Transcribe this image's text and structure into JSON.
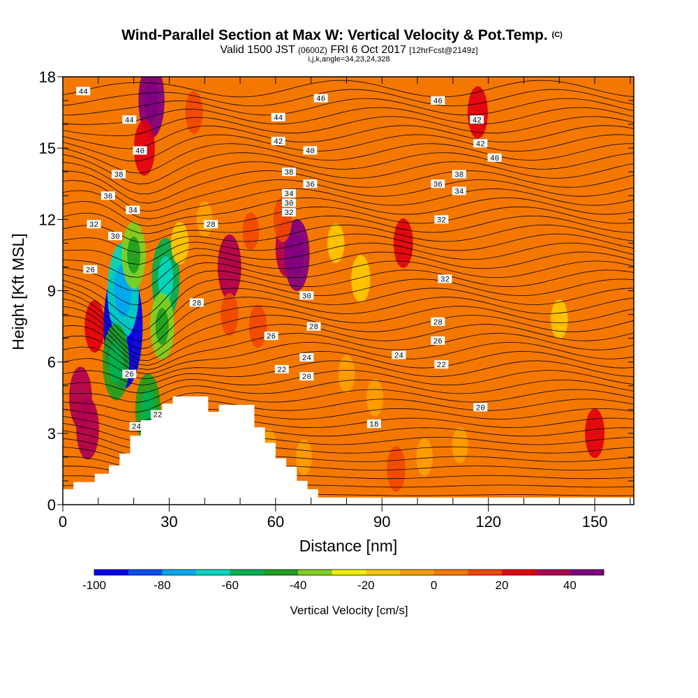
{
  "chart_data": {
    "type": "heatmap",
    "title": "Wind-Parallel Section at Max W: Vertical Velocity & Pot.Temp.",
    "title_mark": "(C)",
    "subtitle_main": "Valid 1500 JST",
    "subtitle_z": "(0600Z)",
    "subtitle_date": "FRI 6 Oct 2017",
    "subtitle_fcst": "[12hrFcst@2149z]",
    "subtitle_indices": "i,j,k,angle=34,23,24,328",
    "xlabel": "Distance [nm]",
    "ylabel": "Height [Kft MSL]",
    "xlim": [
      0,
      161
    ],
    "ylim": [
      0,
      18
    ],
    "xticks": [
      "0",
      "30",
      "60",
      "90",
      "120",
      "150"
    ],
    "yticks": [
      "0",
      "3",
      "6",
      "9",
      "12",
      "15",
      "18"
    ],
    "colorbar": {
      "label": "Vertical Velocity [cm/s]",
      "ticks": [
        "-100",
        "-80",
        "-60",
        "-40",
        "-20",
        "0",
        "20",
        "40"
      ],
      "colors": [
        "#0000f0",
        "#0050f0",
        "#00a8f0",
        "#00d8c0",
        "#00b050",
        "#20a020",
        "#80d020",
        "#f0f000",
        "#ffc800",
        "#ffa000",
        "#f47800",
        "#f04800",
        "#e00010",
        "#b00050",
        "#800080"
      ]
    },
    "theta_contour_labels": [
      "44",
      "46",
      "46",
      "42",
      "44",
      "44",
      "42",
      "42",
      "40",
      "40",
      "40",
      "38",
      "38",
      "38",
      "36",
      "36",
      "36",
      "34",
      "34",
      "34",
      "32",
      "32",
      "32",
      "32",
      "30",
      "30",
      "30",
      "28",
      "28",
      "28",
      "28",
      "26",
      "26",
      "26",
      "26",
      "24",
      "24",
      "24",
      "22",
      "22",
      "22",
      "20",
      "20",
      "18"
    ],
    "vv_cells": [
      {
        "x": 5,
        "y": 4.5,
        "w": 35
      },
      {
        "x": 7,
        "y": 3.2,
        "w": 35
      },
      {
        "x": 9,
        "y": 7.5,
        "w": 25
      },
      {
        "x": 17,
        "y": 7.5,
        "w": -100
      },
      {
        "x": 17,
        "y": 9,
        "w": -70
      },
      {
        "x": 15,
        "y": 6,
        "w": -50
      },
      {
        "x": 20,
        "y": 10.5,
        "w": -40
      },
      {
        "x": 24,
        "y": 9,
        "w": 0
      },
      {
        "x": 29,
        "y": 9.5,
        "w": -55
      },
      {
        "x": 28,
        "y": 7.5,
        "w": -40
      },
      {
        "x": 33,
        "y": 11,
        "w": -15
      },
      {
        "x": 24,
        "y": 4,
        "w": -45
      },
      {
        "x": 25,
        "y": 17,
        "w": 48
      },
      {
        "x": 23,
        "y": 15,
        "w": 28
      },
      {
        "x": 47,
        "y": 10,
        "w": 38
      },
      {
        "x": 47,
        "y": 8,
        "w": 15
      },
      {
        "x": 63,
        "y": 10.8,
        "w": 30
      },
      {
        "x": 66,
        "y": 10.5,
        "w": 45
      },
      {
        "x": 62,
        "y": 12,
        "w": 18
      },
      {
        "x": 53,
        "y": 11.5,
        "w": 10
      },
      {
        "x": 84,
        "y": 9.5,
        "w": -20
      },
      {
        "x": 77,
        "y": 11,
        "w": -12
      },
      {
        "x": 96,
        "y": 11,
        "w": 22
      },
      {
        "x": 94,
        "y": 1.5,
        "w": 18
      },
      {
        "x": 117,
        "y": 16.5,
        "w": 25
      },
      {
        "x": 150,
        "y": 3,
        "w": 22
      },
      {
        "x": 140,
        "y": 7.8,
        "w": -12
      },
      {
        "x": 102,
        "y": 2,
        "w": -10
      },
      {
        "x": 88,
        "y": 4.5,
        "w": -10
      },
      {
        "x": 80,
        "y": 5.5,
        "w": -10
      },
      {
        "x": 112,
        "y": 2.5,
        "w": -8
      },
      {
        "x": 58,
        "y": 2.5,
        "w": -5
      },
      {
        "x": 68,
        "y": 2,
        "w": -8
      },
      {
        "x": 37,
        "y": 16.5,
        "w": 15
      },
      {
        "x": 65,
        "y": 16.5,
        "w": 8
      },
      {
        "x": 55,
        "y": 7.5,
        "w": 15
      },
      {
        "x": 40,
        "y": 12,
        "w": -8
      }
    ]
  }
}
